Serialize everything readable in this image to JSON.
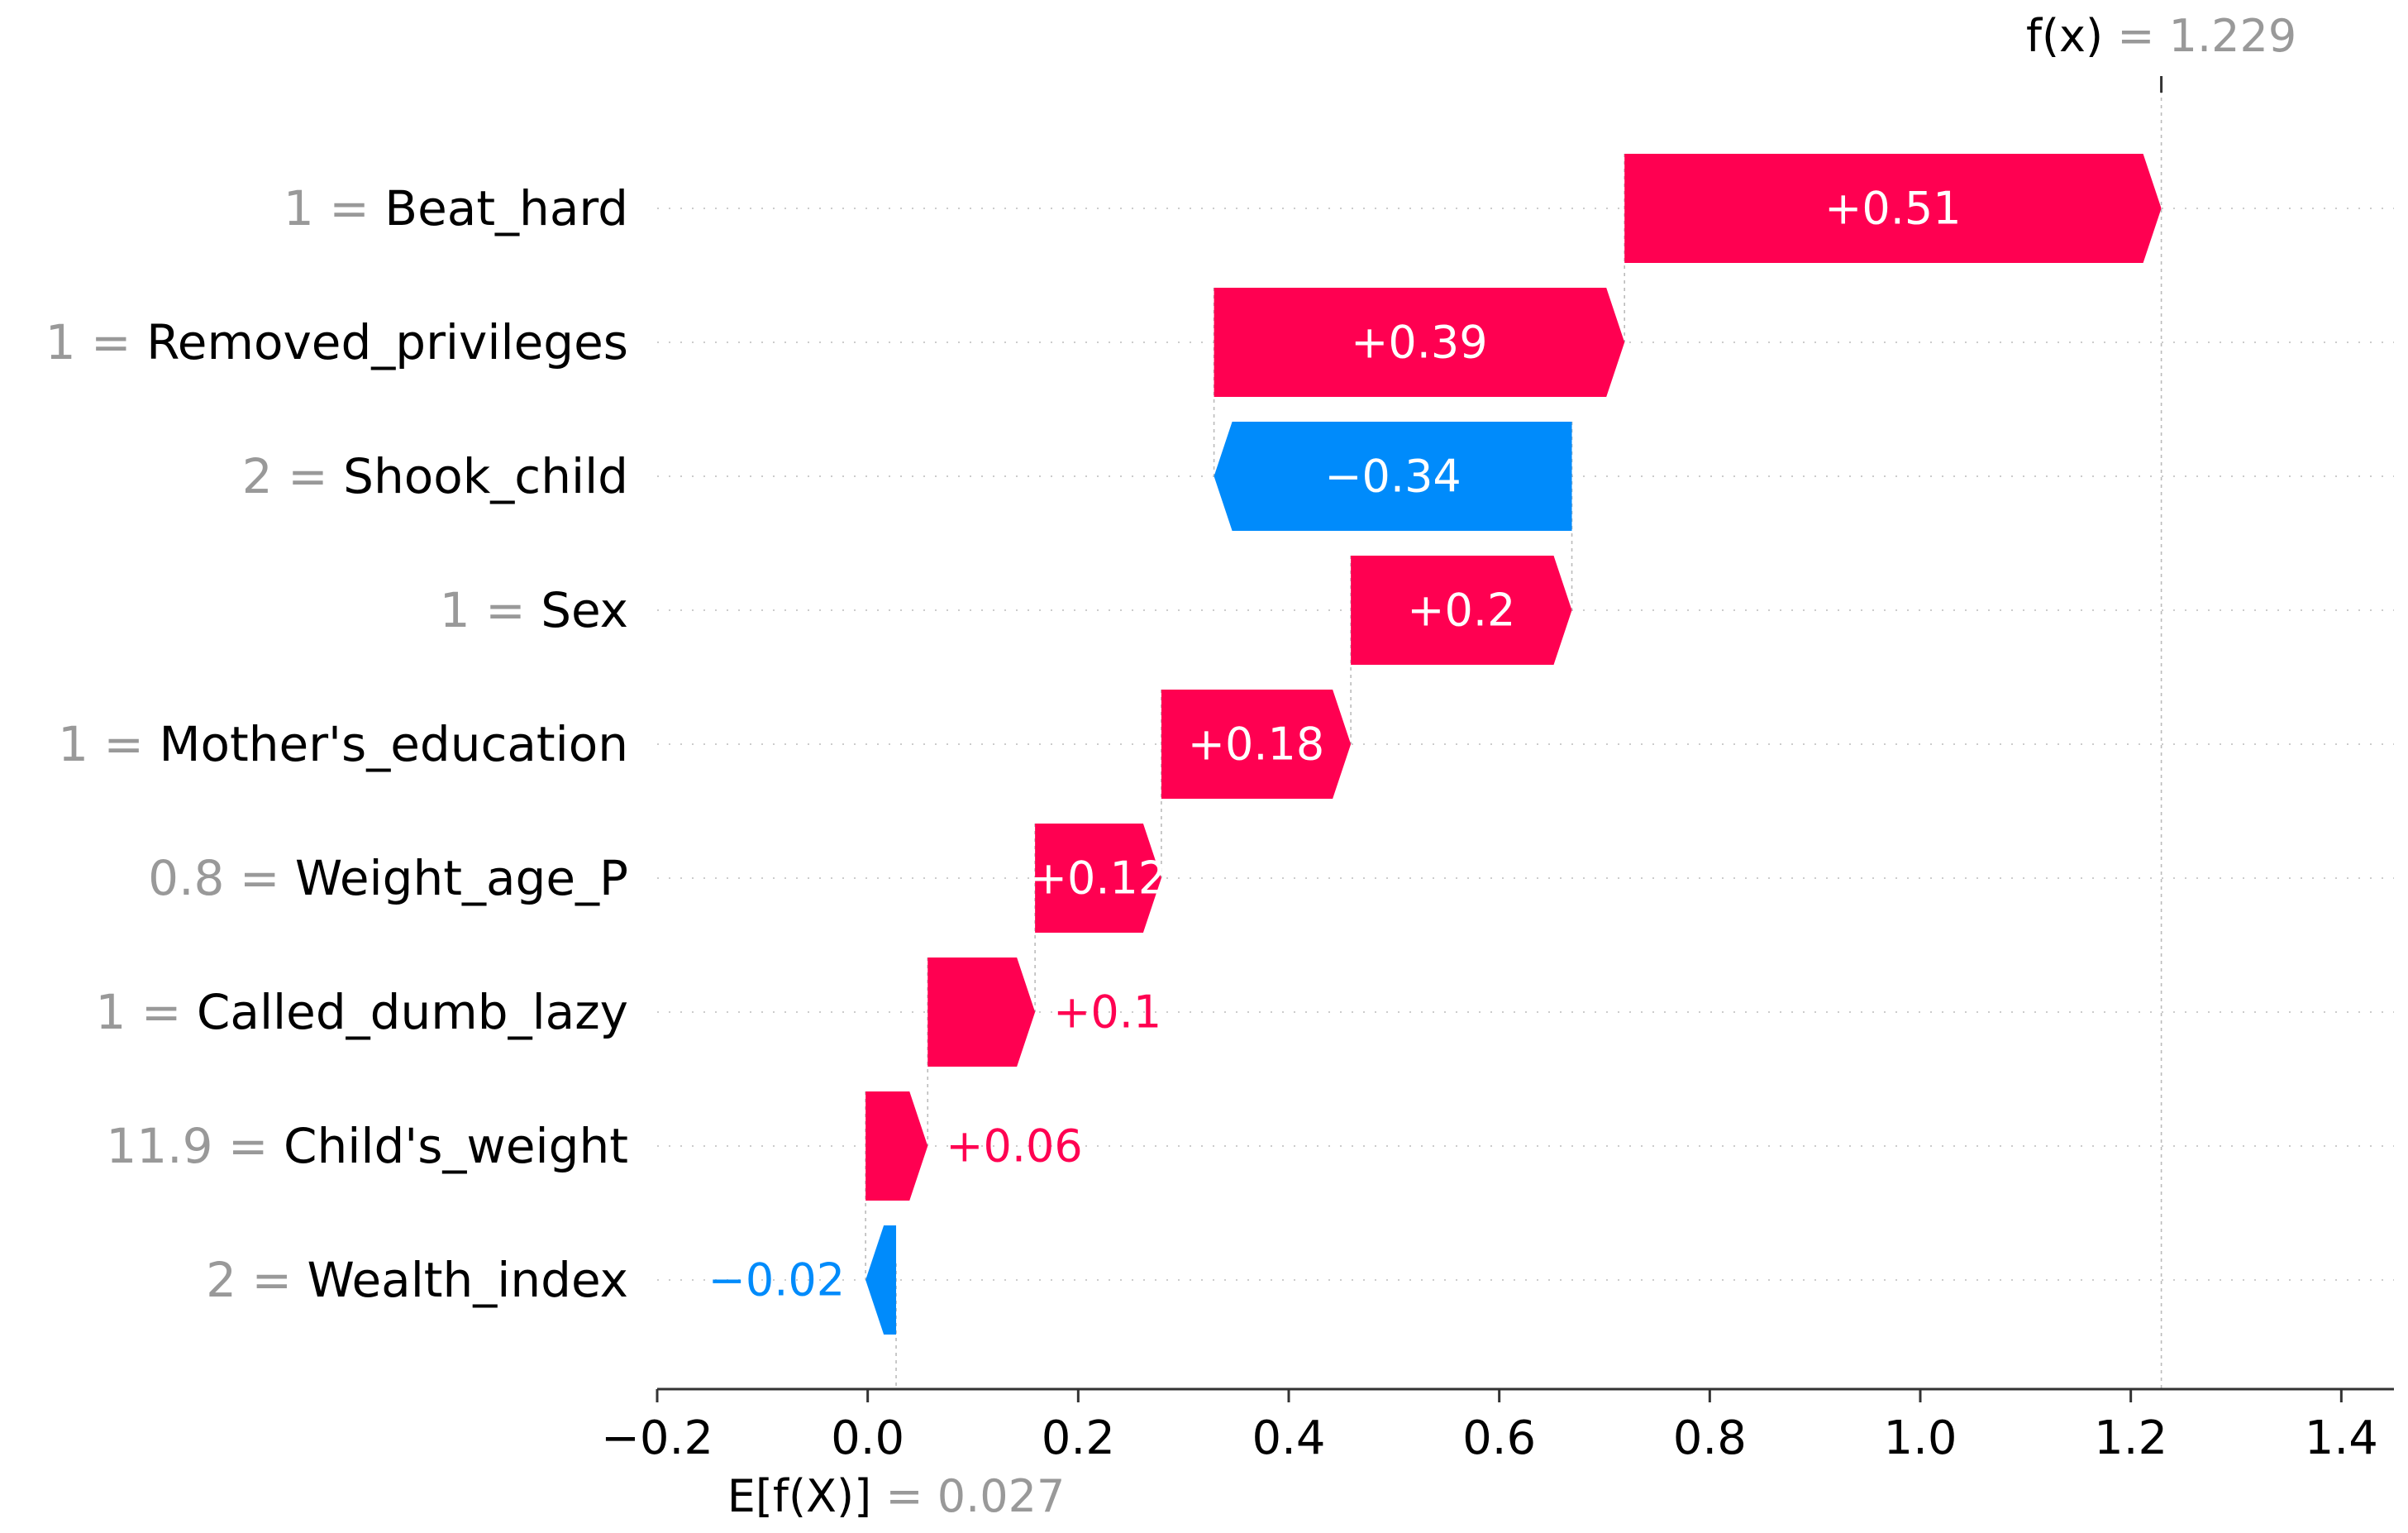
{
  "chart_data": {
    "type": "waterfall",
    "title": "",
    "base_value": 0.027,
    "base_label_prefix": "E[f(X)]",
    "base_label_value": "0.027",
    "output_value": 1.229,
    "output_label_prefix": "f(x)",
    "output_label_value": "1.229",
    "xlim": [
      -0.2,
      1.45
    ],
    "xticks": [
      -0.2,
      0.0,
      0.2,
      0.4,
      0.6,
      0.8,
      1.0,
      1.2,
      1.4
    ],
    "xtick_labels": [
      "−0.2",
      "0.0",
      "0.2",
      "0.4",
      "0.6",
      "0.8",
      "1.0",
      "1.2",
      "1.4"
    ],
    "positive_color": "#ff0051",
    "negative_color": "#008bfb",
    "features": [
      {
        "value": "1",
        "name": "Beat_hard",
        "start": 0.719,
        "end": 1.229,
        "contribution": 0.51,
        "label": "+0.51"
      },
      {
        "value": "1",
        "name": "Removed_privileges",
        "start": 0.329,
        "end": 0.719,
        "contribution": 0.39,
        "label": "+0.39"
      },
      {
        "value": "2",
        "name": "Shook_child",
        "start": 0.669,
        "end": 0.329,
        "contribution": -0.34,
        "label": "−0.34"
      },
      {
        "value": "1",
        "name": "Sex",
        "start": 0.459,
        "end": 0.669,
        "contribution": 0.2,
        "label": "+0.2"
      },
      {
        "value": "1",
        "name": "Mother's_education",
        "start": 0.279,
        "end": 0.459,
        "contribution": 0.18,
        "label": "+0.18"
      },
      {
        "value": "0.8",
        "name": "Weight_age_P",
        "start": 0.159,
        "end": 0.279,
        "contribution": 0.12,
        "label": "+0.12"
      },
      {
        "value": "1",
        "name": "Called_dumb_lazy",
        "start": 0.057,
        "end": 0.159,
        "contribution": 0.1,
        "label": "+0.1"
      },
      {
        "value": "11.9",
        "name": "Child's_weight",
        "start": -0.002,
        "end": 0.057,
        "contribution": 0.06,
        "label": "+0.06"
      },
      {
        "value": "2",
        "name": "Wealth_index",
        "start": 0.027,
        "end": -0.002,
        "contribution": -0.02,
        "label": "−0.02"
      }
    ]
  }
}
